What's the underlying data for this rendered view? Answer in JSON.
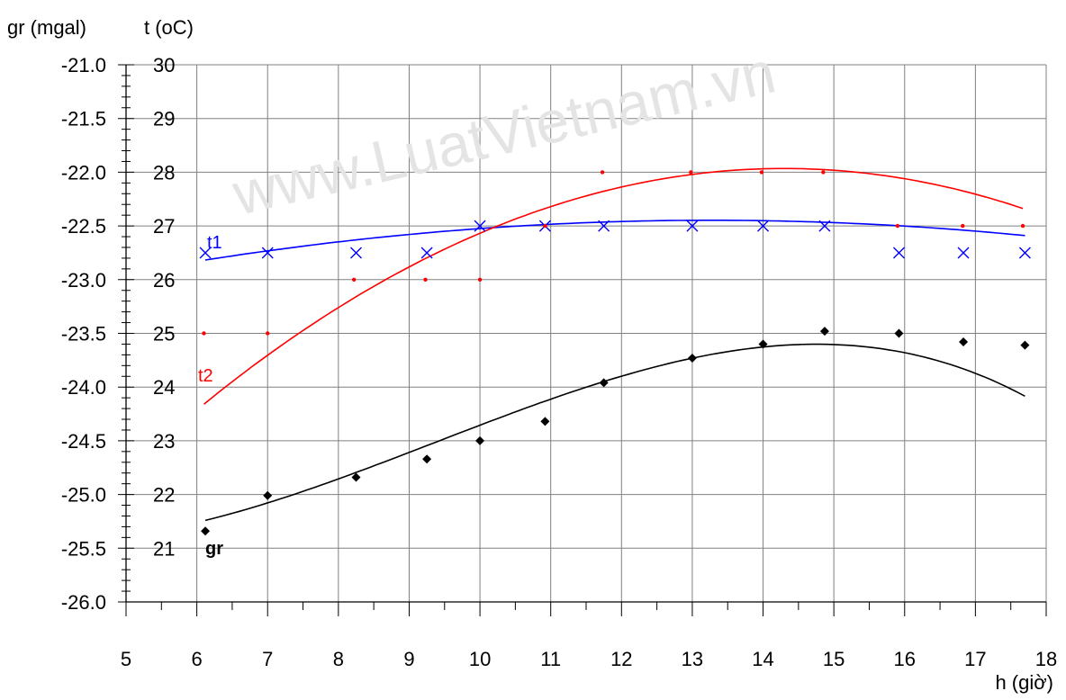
{
  "chart_data": {
    "type": "scatter",
    "y_left_label": "gr (mgal)",
    "y_right_label": "t (oC)",
    "xlabel": "h (giờ)",
    "watermark": "www.LuatVietnam.vn",
    "xlim": [
      5,
      18
    ],
    "x_ticks": [
      "5",
      "6",
      "7",
      "8",
      "9",
      "10",
      "11",
      "12",
      "13",
      "14",
      "15",
      "16",
      "17",
      "18"
    ],
    "ylim_gr": [
      -26.0,
      -21.0
    ],
    "gr_ticks": [
      "-21.0",
      "-21.5",
      "-22.0",
      "-22.5",
      "-23.0",
      "-23.5",
      "-24.0",
      "-24.5",
      "-25.0",
      "-25.5",
      "-26.0"
    ],
    "ylim_t": [
      20,
      30
    ],
    "t_ticks": [
      "30",
      "29",
      "28",
      "27",
      "26",
      "25",
      "24",
      "23",
      "22",
      "21"
    ],
    "grid": true,
    "series": [
      {
        "name": "t1",
        "axis": "t",
        "color": "#0000ff",
        "marker": "x",
        "x": [
          6.12,
          7.0,
          8.25,
          9.25,
          10.0,
          10.92,
          11.75,
          13.0,
          14.0,
          14.87,
          15.92,
          16.83,
          17.7
        ],
        "y": [
          26.5,
          26.5,
          26.5,
          26.5,
          27.0,
          27.0,
          27.0,
          27.0,
          27.0,
          27.0,
          26.5,
          26.5,
          26.5
        ],
        "fit": [
          -0.0145,
          0.3847,
          24.5536
        ]
      },
      {
        "name": "t2",
        "axis": "t",
        "color": "#ff0000",
        "marker": "dot",
        "x": [
          6.1,
          7.0,
          8.22,
          9.23,
          10.0,
          10.92,
          11.73,
          12.98,
          13.98,
          14.85,
          15.9,
          16.82,
          17.67
        ],
        "y": [
          25.0,
          25.0,
          26.0,
          26.0,
          26.0,
          27.0,
          28.0,
          28.0,
          28.0,
          28.0,
          27.0,
          27.0,
          27.0
        ],
        "fit": [
          -0.0653,
          1.8671,
          14.7224
        ]
      },
      {
        "name": "gr",
        "axis": "gr",
        "color": "#000000",
        "marker": "diamond",
        "x": [
          6.12,
          7.0,
          8.25,
          9.25,
          10.0,
          10.92,
          11.75,
          13.0,
          14.0,
          14.87,
          15.92,
          16.83,
          17.7
        ],
        "y": [
          -25.34,
          -25.01,
          -24.84,
          -24.67,
          -24.5,
          -24.32,
          -23.96,
          -23.73,
          -23.6,
          -23.48,
          -23.5,
          -23.58,
          -23.61
        ],
        "fit_cubic": [
          -0.00292,
          0.10466,
          -0.98575,
          -22.7
        ]
      }
    ]
  }
}
